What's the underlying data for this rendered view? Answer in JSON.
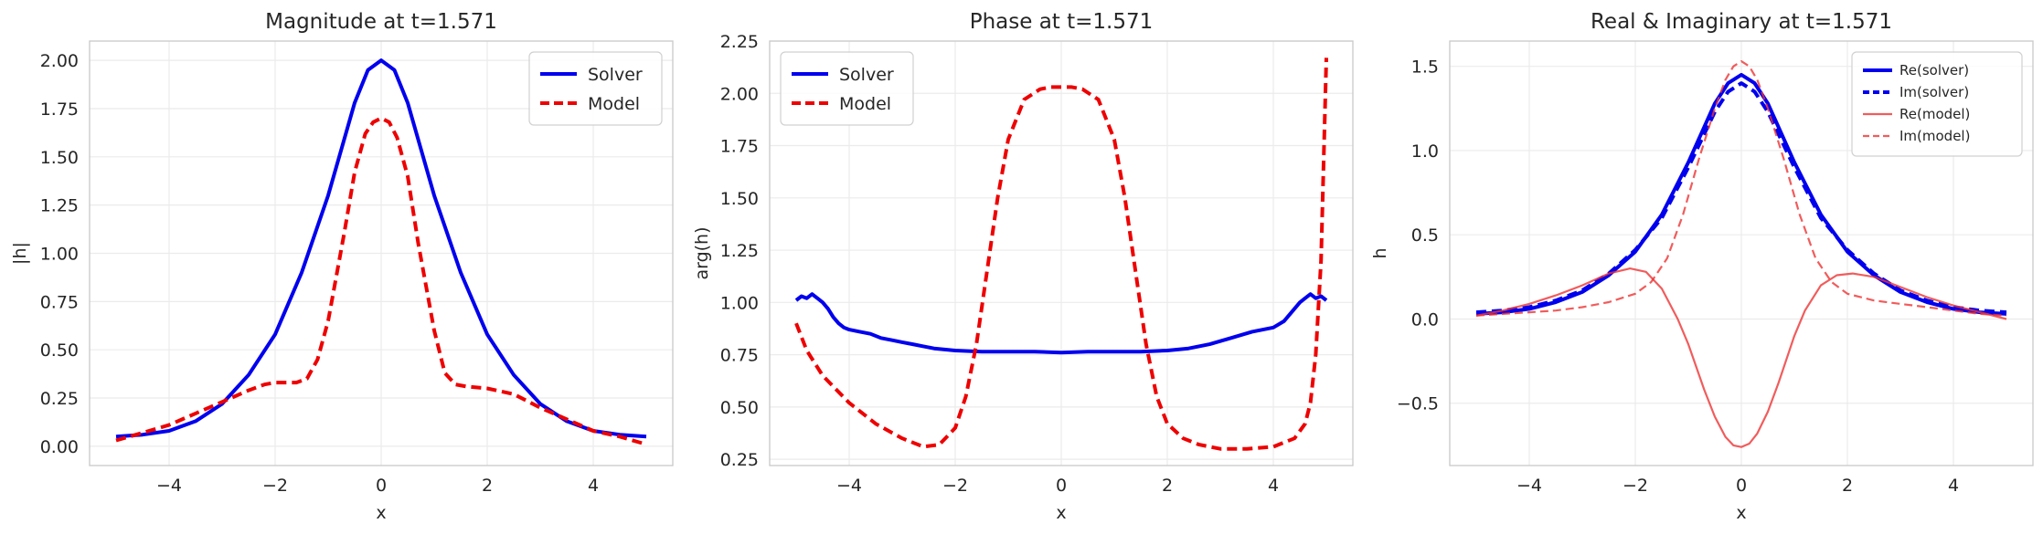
{
  "chart_data": [
    {
      "type": "line",
      "title": "Magnitude at t=1.571",
      "xlabel": "x",
      "ylabel": "|h|",
      "xlim": [
        -5.5,
        5.5
      ],
      "ylim": [
        -0.1,
        2.1
      ],
      "xticks": [
        -4,
        -2,
        0,
        2,
        4
      ],
      "yticks": [
        0.0,
        0.25,
        0.5,
        0.75,
        1.0,
        1.25,
        1.5,
        1.75,
        2.0
      ],
      "ytick_labels": [
        "0.00",
        "0.25",
        "0.50",
        "0.75",
        "1.00",
        "1.25",
        "1.50",
        "1.75",
        "2.00"
      ],
      "xtick_labels": [
        "−4",
        "−2",
        "0",
        "2",
        "4"
      ],
      "grid": true,
      "legend": "top-right",
      "series": [
        {
          "name": "Solver",
          "color": "#0000ee",
          "style": "solid",
          "x": [
            -5,
            -4.5,
            -4,
            -3.5,
            -3,
            -2.5,
            -2,
            -1.5,
            -1,
            -0.5,
            -0.25,
            0,
            0.25,
            0.5,
            1,
            1.5,
            2,
            2.5,
            3,
            3.5,
            4,
            4.5,
            5
          ],
          "y": [
            0.05,
            0.06,
            0.08,
            0.13,
            0.22,
            0.37,
            0.58,
            0.9,
            1.3,
            1.78,
            1.95,
            2.0,
            1.95,
            1.78,
            1.3,
            0.9,
            0.58,
            0.37,
            0.22,
            0.13,
            0.08,
            0.06,
            0.05
          ]
        },
        {
          "name": "Model",
          "color": "#ee0000",
          "style": "dashed",
          "x": [
            -5,
            -4.5,
            -4,
            -3.5,
            -3,
            -2.5,
            -2.2,
            -2,
            -1.6,
            -1.4,
            -1.2,
            -1,
            -0.7,
            -0.5,
            -0.3,
            -0.15,
            0,
            0.15,
            0.3,
            0.5,
            0.7,
            1,
            1.2,
            1.4,
            1.6,
            2,
            2.5,
            3,
            3.5,
            4,
            4.5,
            5
          ],
          "y": [
            0.03,
            0.07,
            0.11,
            0.17,
            0.23,
            0.29,
            0.32,
            0.33,
            0.33,
            0.35,
            0.45,
            0.65,
            1.1,
            1.42,
            1.62,
            1.68,
            1.7,
            1.68,
            1.6,
            1.4,
            1.05,
            0.6,
            0.38,
            0.32,
            0.31,
            0.3,
            0.27,
            0.2,
            0.14,
            0.08,
            0.05,
            0.01
          ]
        }
      ]
    },
    {
      "type": "line",
      "title": "Phase at t=1.571",
      "xlabel": "x",
      "ylabel": "arg(h)",
      "xlim": [
        -5.5,
        5.5
      ],
      "ylim": [
        0.22,
        2.25
      ],
      "xticks": [
        -4,
        -2,
        0,
        2,
        4
      ],
      "yticks": [
        0.25,
        0.5,
        0.75,
        1.0,
        1.25,
        1.5,
        1.75,
        2.0,
        2.25
      ],
      "ytick_labels": [
        "0.25",
        "0.50",
        "0.75",
        "1.00",
        "1.25",
        "1.50",
        "1.75",
        "2.00",
        "2.25"
      ],
      "xtick_labels": [
        "−4",
        "−2",
        "0",
        "2",
        "4"
      ],
      "grid": true,
      "legend": "top-left",
      "series": [
        {
          "name": "Solver",
          "color": "#0000ee",
          "style": "solid",
          "x": [
            -5,
            -4.9,
            -4.8,
            -4.7,
            -4.6,
            -4.5,
            -4.4,
            -4.3,
            -4.2,
            -4.1,
            -4,
            -3.8,
            -3.6,
            -3.4,
            -3.2,
            -3,
            -2.8,
            -2.6,
            -2.4,
            -2.2,
            -2,
            -1.5,
            -1,
            -0.5,
            0,
            0.5,
            1,
            1.5,
            2,
            2.4,
            2.8,
            3.2,
            3.6,
            4,
            4.2,
            4.4,
            4.5,
            4.6,
            4.7,
            4.8,
            4.9,
            5
          ],
          "y": [
            1.01,
            1.03,
            1.02,
            1.04,
            1.02,
            1.0,
            0.97,
            0.93,
            0.9,
            0.88,
            0.87,
            0.86,
            0.85,
            0.83,
            0.82,
            0.81,
            0.8,
            0.79,
            0.78,
            0.775,
            0.77,
            0.765,
            0.765,
            0.765,
            0.76,
            0.765,
            0.765,
            0.765,
            0.77,
            0.78,
            0.8,
            0.83,
            0.86,
            0.88,
            0.91,
            0.97,
            1.0,
            1.02,
            1.04,
            1.02,
            1.03,
            1.01
          ]
        },
        {
          "name": "Model",
          "color": "#ee0000",
          "style": "dashed",
          "x": [
            -5,
            -4.8,
            -4.5,
            -4,
            -3.5,
            -3,
            -2.6,
            -2.3,
            -2,
            -1.8,
            -1.6,
            -1.4,
            -1.2,
            -1,
            -0.7,
            -0.4,
            -0.2,
            0,
            0.2,
            0.4,
            0.7,
            1,
            1.2,
            1.4,
            1.6,
            1.8,
            2,
            2.3,
            2.6,
            3,
            3.5,
            4,
            4.4,
            4.6,
            4.7,
            4.8,
            4.9,
            5
          ],
          "y": [
            0.9,
            0.77,
            0.65,
            0.52,
            0.42,
            0.35,
            0.31,
            0.32,
            0.4,
            0.55,
            0.8,
            1.15,
            1.5,
            1.78,
            1.97,
            2.02,
            2.03,
            2.03,
            2.03,
            2.02,
            1.97,
            1.78,
            1.5,
            1.15,
            0.8,
            0.55,
            0.42,
            0.35,
            0.32,
            0.3,
            0.3,
            0.31,
            0.35,
            0.42,
            0.52,
            0.75,
            1.2,
            2.17
          ]
        }
      ]
    },
    {
      "type": "line",
      "title": "Real & Imaginary at t=1.571",
      "xlabel": "x",
      "ylabel": "h",
      "xlim": [
        -5.5,
        5.5
      ],
      "ylim": [
        -0.87,
        1.65
      ],
      "xticks": [
        -4,
        -2,
        0,
        2,
        4
      ],
      "yticks": [
        -0.5,
        0.0,
        0.5,
        1.0,
        1.5
      ],
      "ytick_labels": [
        "−0.5",
        "0.0",
        "0.5",
        "1.0",
        "1.5"
      ],
      "xtick_labels": [
        "−4",
        "−2",
        "0",
        "2",
        "4"
      ],
      "grid": true,
      "legend": "top-right",
      "series": [
        {
          "name": "Re(solver)",
          "color": "#0000ee",
          "style": "solid",
          "x": [
            -5,
            -4.5,
            -4,
            -3.5,
            -3,
            -2.5,
            -2,
            -1.5,
            -1,
            -0.5,
            -0.25,
            0,
            0.25,
            0.5,
            1,
            1.5,
            2,
            2.5,
            3,
            3.5,
            4,
            4.5,
            5
          ],
          "y": [
            0.03,
            0.04,
            0.06,
            0.1,
            0.16,
            0.26,
            0.4,
            0.62,
            0.93,
            1.28,
            1.4,
            1.45,
            1.4,
            1.28,
            0.93,
            0.62,
            0.4,
            0.26,
            0.16,
            0.1,
            0.06,
            0.04,
            0.03
          ]
        },
        {
          "name": "Im(solver)",
          "color": "#0000ee",
          "style": "dashed",
          "x": [
            -5,
            -4.5,
            -4,
            -3.5,
            -3,
            -2.5,
            -2,
            -1.5,
            -1,
            -0.5,
            -0.25,
            0,
            0.25,
            0.5,
            1,
            1.5,
            2,
            2.5,
            3,
            3.5,
            4,
            4.5,
            5
          ],
          "y": [
            0.04,
            0.05,
            0.07,
            0.11,
            0.17,
            0.27,
            0.41,
            0.6,
            0.9,
            1.23,
            1.35,
            1.4,
            1.35,
            1.23,
            0.9,
            0.6,
            0.41,
            0.27,
            0.17,
            0.11,
            0.07,
            0.05,
            0.04
          ]
        },
        {
          "name": "Re(model)",
          "color": "#ee3333",
          "style": "solid",
          "x": [
            -5,
            -4.5,
            -4,
            -3.5,
            -3,
            -2.5,
            -2.1,
            -1.8,
            -1.5,
            -1.2,
            -1,
            -0.7,
            -0.5,
            -0.3,
            -0.15,
            0,
            0.15,
            0.3,
            0.5,
            0.7,
            1,
            1.2,
            1.5,
            1.8,
            2.1,
            2.5,
            3,
            3.5,
            4,
            4.5,
            5
          ],
          "y": [
            0.02,
            0.05,
            0.09,
            0.14,
            0.2,
            0.27,
            0.3,
            0.28,
            0.18,
            0.0,
            -0.15,
            -0.42,
            -0.58,
            -0.7,
            -0.75,
            -0.76,
            -0.74,
            -0.68,
            -0.55,
            -0.38,
            -0.1,
            0.05,
            0.2,
            0.26,
            0.27,
            0.25,
            0.19,
            0.13,
            0.08,
            0.04,
            0.0
          ]
        },
        {
          "name": "Im(model)",
          "color": "#ee3333",
          "style": "dashed",
          "x": [
            -5,
            -4.5,
            -4,
            -3.5,
            -3,
            -2.5,
            -2,
            -1.7,
            -1.4,
            -1.1,
            -0.8,
            -0.5,
            -0.3,
            -0.15,
            0,
            0.15,
            0.3,
            0.5,
            0.8,
            1.1,
            1.4,
            1.7,
            2,
            2.5,
            3,
            3.5,
            4,
            4.5,
            5
          ],
          "y": [
            0.02,
            0.03,
            0.04,
            0.05,
            0.07,
            0.1,
            0.15,
            0.22,
            0.36,
            0.62,
            0.95,
            1.25,
            1.42,
            1.5,
            1.53,
            1.5,
            1.42,
            1.25,
            0.95,
            0.62,
            0.36,
            0.22,
            0.15,
            0.11,
            0.09,
            0.07,
            0.05,
            0.03,
            0.02
          ]
        }
      ]
    }
  ]
}
